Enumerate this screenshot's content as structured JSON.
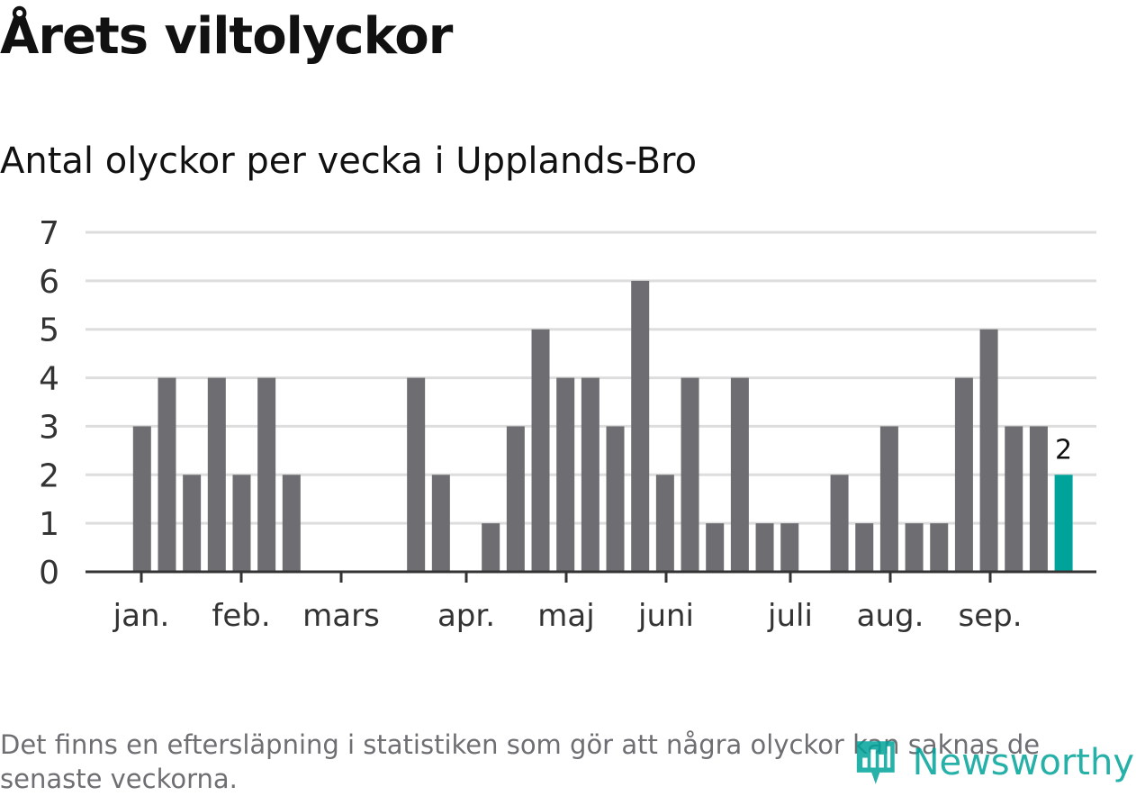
{
  "title": "Årets viltolyckor",
  "subtitle": "Antal olyckor per vecka i Upplands-Bro",
  "footnote": "Det finns en eftersläpning i statistiken som gör att några olyckor kan saknas de senaste veckorna.",
  "brand": {
    "name": "Newsworthy",
    "icon": "newsworthy-logo-icon",
    "color": "#00a39a"
  },
  "chart_data": {
    "type": "bar",
    "ylim": [
      0,
      7
    ],
    "yticks": [
      "0",
      "1",
      "2",
      "3",
      "4",
      "5",
      "6",
      "7"
    ],
    "xlabels": [
      "jan.",
      "feb.",
      "mars",
      "apr.",
      "maj",
      "juni",
      "juli",
      "aug.",
      "sep."
    ],
    "grid": true,
    "colors": {
      "bar": "#6e6d72",
      "highlight": "#00a39a",
      "grid": "#dddddd",
      "axis": "#333333"
    },
    "values": [
      0,
      0,
      3,
      4,
      2,
      4,
      2,
      4,
      2,
      0,
      0,
      0,
      0,
      4,
      2,
      0,
      1,
      3,
      5,
      4,
      4,
      3,
      6,
      2,
      4,
      1,
      4,
      1,
      1,
      0,
      2,
      1,
      3,
      1,
      1,
      4,
      5,
      3,
      3,
      2
    ],
    "highlight_index": 39,
    "highlight_label": "2"
  }
}
